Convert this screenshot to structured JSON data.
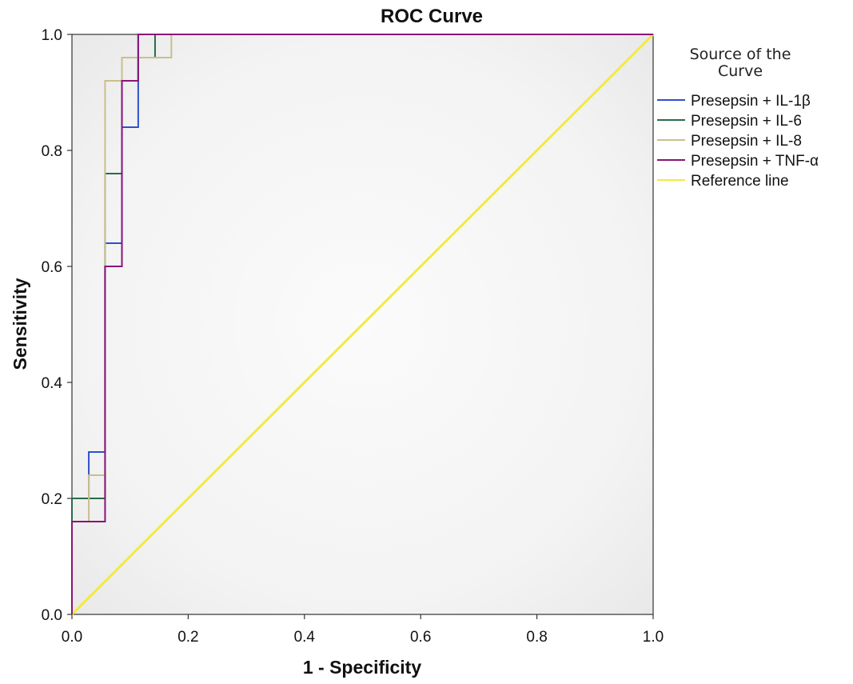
{
  "chart_data": {
    "type": "line",
    "title": "ROC Curve",
    "xlabel": "1 - Specificity",
    "ylabel": "Sensitivity",
    "xlim": [
      0.0,
      1.0
    ],
    "ylim": [
      0.0,
      1.0
    ],
    "x_ticks": [
      "0.0",
      "0.2",
      "0.4",
      "0.6",
      "0.8",
      "1.0"
    ],
    "y_ticks": [
      "0.0",
      "0.2",
      "0.4",
      "0.6",
      "0.8",
      "1.0"
    ],
    "grid": false,
    "legend_title_lines": [
      "Source of the",
      "Curve"
    ],
    "legend_position": "right",
    "series": [
      {
        "name": "Presepsin + IL-1β",
        "color": "#2f4fd0",
        "points": [
          [
            0,
            0
          ],
          [
            0,
            0.2
          ],
          [
            0.029,
            0.2
          ],
          [
            0.029,
            0.28
          ],
          [
            0.057,
            0.28
          ],
          [
            0.057,
            0.64
          ],
          [
            0.086,
            0.64
          ],
          [
            0.086,
            0.84
          ],
          [
            0.114,
            0.84
          ],
          [
            0.114,
            1.0
          ],
          [
            1.0,
            1.0
          ]
        ]
      },
      {
        "name": "Presepsin + IL-6",
        "color": "#2a6b4a",
        "points": [
          [
            0,
            0
          ],
          [
            0,
            0.2
          ],
          [
            0.057,
            0.2
          ],
          [
            0.057,
            0.64
          ],
          [
            0.057,
            0.76
          ],
          [
            0.086,
            0.76
          ],
          [
            0.086,
            0.92
          ],
          [
            0.114,
            0.92
          ],
          [
            0.114,
            0.96
          ],
          [
            0.143,
            0.96
          ],
          [
            0.143,
            1.0
          ],
          [
            1.0,
            1.0
          ]
        ]
      },
      {
        "name": "Presepsin + IL-8",
        "color": "#c9bf8c",
        "points": [
          [
            0,
            0
          ],
          [
            0,
            0.16
          ],
          [
            0.029,
            0.16
          ],
          [
            0.029,
            0.24
          ],
          [
            0.057,
            0.24
          ],
          [
            0.057,
            0.92
          ],
          [
            0.086,
            0.92
          ],
          [
            0.086,
            0.96
          ],
          [
            0.171,
            0.96
          ],
          [
            0.171,
            1.0
          ],
          [
            1.0,
            1.0
          ]
        ]
      },
      {
        "name": "Presepsin + TNF-α",
        "color": "#8a1478",
        "points": [
          [
            0,
            0
          ],
          [
            0,
            0.16
          ],
          [
            0.057,
            0.16
          ],
          [
            0.057,
            0.6
          ],
          [
            0.086,
            0.6
          ],
          [
            0.086,
            0.92
          ],
          [
            0.114,
            0.92
          ],
          [
            0.114,
            1.0
          ],
          [
            1.0,
            1.0
          ]
        ]
      },
      {
        "name": "Reference line",
        "color": "#f4ea3c",
        "points": [
          [
            0,
            0
          ],
          [
            1.0,
            1.0
          ]
        ]
      }
    ]
  }
}
